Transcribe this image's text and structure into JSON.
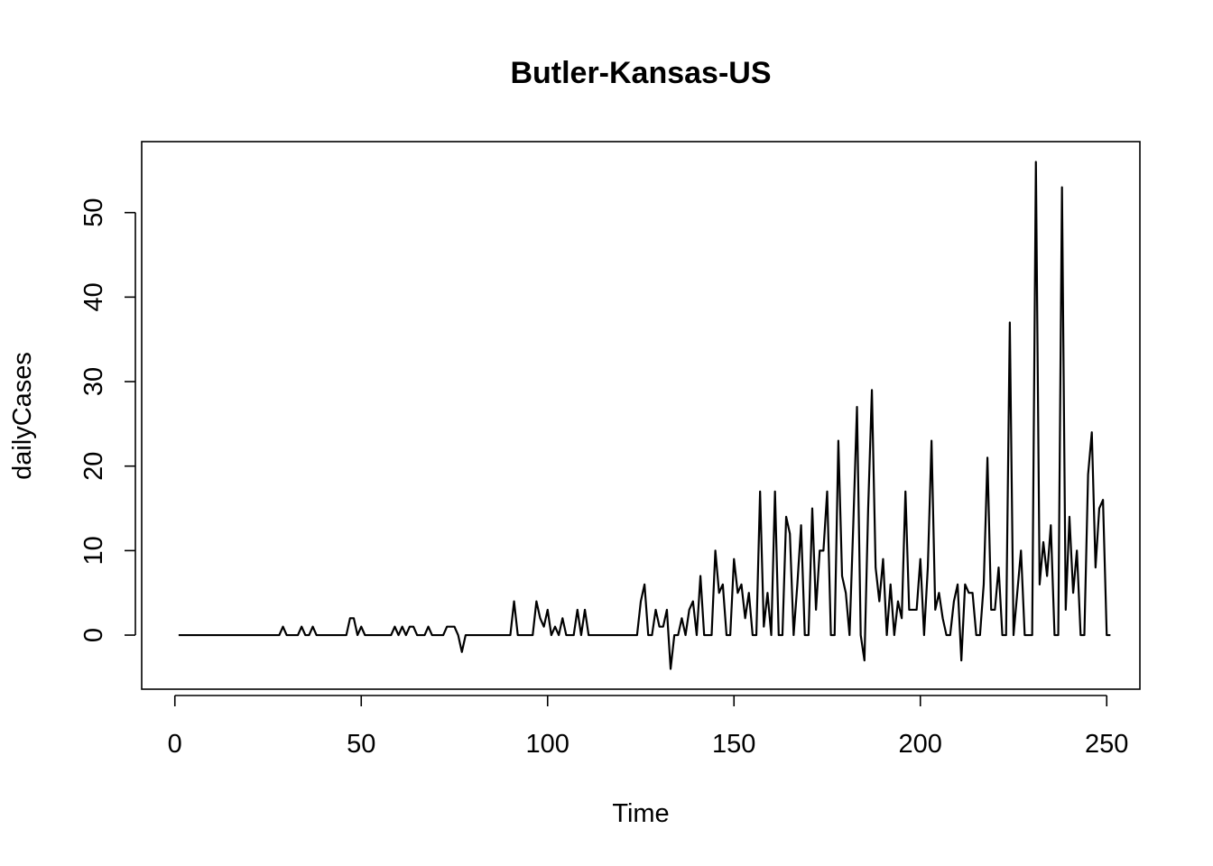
{
  "chart_data": {
    "type": "line",
    "title": "Butler-Kansas-US",
    "xlabel": "Time",
    "ylabel": "dailyCases",
    "xlim": [
      -8.9,
      258.9
    ],
    "ylim": [
      -6.4,
      58.4
    ],
    "x_ticks": [
      0,
      50,
      100,
      150,
      200,
      250
    ],
    "y_ticks": [
      0,
      10,
      20,
      30,
      40,
      50
    ],
    "grid": false,
    "legend": "none",
    "line_color": "#000000",
    "series": [
      {
        "x_start": 1,
        "values": [
          0,
          0,
          0,
          0,
          0,
          0,
          0,
          0,
          0,
          0,
          0,
          0,
          0,
          0,
          0,
          0,
          0,
          0,
          0,
          0,
          0,
          0,
          0,
          0,
          0,
          0,
          0,
          0,
          1,
          0,
          0,
          0,
          0,
          1,
          0,
          0,
          1,
          0,
          0,
          0,
          0,
          0,
          0,
          0,
          0,
          0,
          2,
          2,
          0,
          1,
          0,
          0,
          0,
          0,
          0,
          0,
          0,
          0,
          1,
          0,
          1,
          0,
          1,
          1,
          0,
          0,
          0,
          1,
          0,
          0,
          0,
          0,
          1,
          1,
          1,
          0,
          -2,
          0,
          0,
          0,
          0,
          0,
          0,
          0,
          0,
          0,
          0,
          0,
          0,
          0,
          4,
          0,
          0,
          0,
          0,
          0,
          4,
          2,
          1,
          3,
          0,
          1,
          0,
          2,
          0,
          0,
          0,
          3,
          0,
          3,
          0,
          0,
          0,
          0,
          0,
          0,
          0,
          0,
          0,
          0,
          0,
          0,
          0,
          0,
          4,
          6,
          0,
          0,
          3,
          1,
          1,
          3,
          -4,
          0,
          0,
          2,
          0,
          3,
          4,
          0,
          7,
          0,
          0,
          0,
          10,
          5,
          6,
          0,
          0,
          9,
          5,
          6,
          2,
          5,
          0,
          0,
          17,
          1,
          5,
          0,
          17,
          0,
          0,
          14,
          12,
          0,
          6,
          13,
          0,
          0,
          15,
          3,
          10,
          10,
          17,
          0,
          0,
          23,
          7,
          5,
          0,
          13,
          27,
          0,
          -3,
          15,
          29,
          8,
          4,
          9,
          0,
          6,
          0,
          4,
          2,
          17,
          3,
          3,
          3,
          9,
          0,
          8,
          23,
          3,
          5,
          2,
          0,
          0,
          4,
          6,
          -3,
          6,
          5,
          5,
          0,
          0,
          6,
          21,
          3,
          3,
          8,
          0,
          0,
          37,
          0,
          5,
          10,
          0,
          0,
          0,
          56,
          6,
          11,
          7,
          13,
          0,
          0,
          53,
          3,
          14,
          5,
          10,
          0,
          0,
          19,
          24,
          8,
          15,
          16,
          0,
          0
        ]
      }
    ]
  }
}
